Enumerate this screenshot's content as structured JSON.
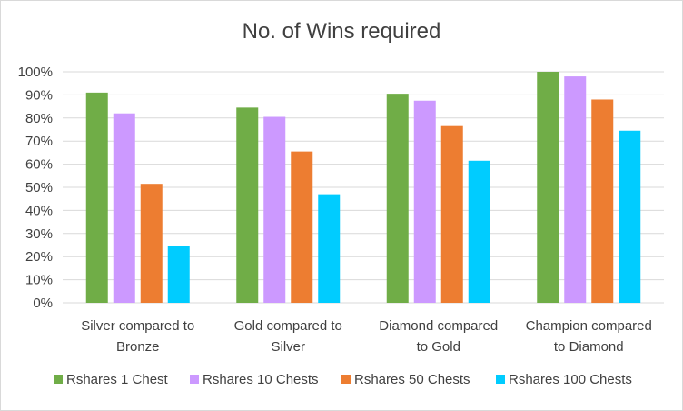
{
  "chart_data": {
    "type": "bar",
    "title": "No. of Wins required",
    "categories": [
      [
        "Silver compared to",
        "Bronze"
      ],
      [
        "Gold compared to",
        "Silver"
      ],
      [
        "Diamond compared",
        "to Gold"
      ],
      [
        "Champion compared",
        "to Diamond"
      ]
    ],
    "series": [
      {
        "name": "Rshares 1 Chest",
        "color": "#70ad47",
        "values": [
          0.91,
          0.845,
          0.905,
          1.005
        ]
      },
      {
        "name": "Rshares 10 Chests",
        "color": "#cc99ff",
        "values": [
          0.82,
          0.805,
          0.875,
          0.98
        ]
      },
      {
        "name": "Rshares 50 Chests",
        "color": "#ed7d31",
        "values": [
          0.515,
          0.655,
          0.765,
          0.88
        ]
      },
      {
        "name": "Rshares 100 Chests",
        "color": "#00ccff",
        "values": [
          0.245,
          0.47,
          0.615,
          0.745
        ]
      }
    ],
    "ylim": [
      0,
      1.0
    ],
    "yticks": [
      "0%",
      "10%",
      "20%",
      "30%",
      "40%",
      "50%",
      "60%",
      "70%",
      "80%",
      "90%",
      "100%"
    ],
    "grid": true,
    "legend": "bottom"
  }
}
